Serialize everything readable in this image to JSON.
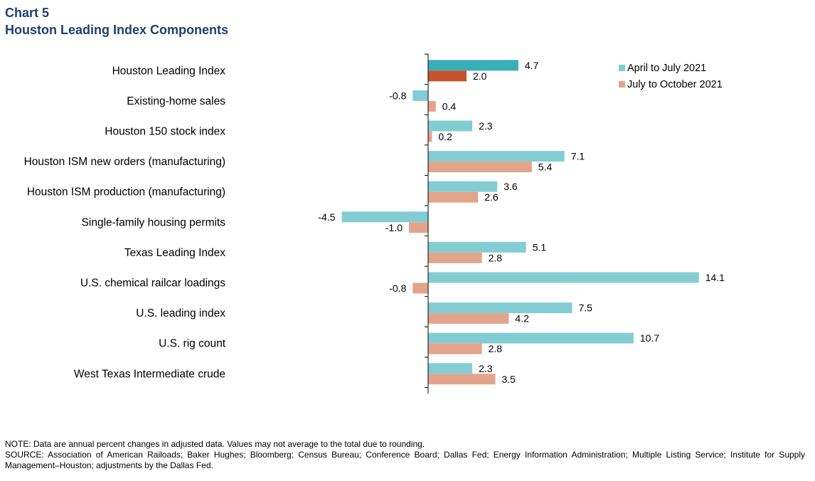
{
  "header": {
    "chart_label": "Chart 5",
    "title": "Houston Leading Index Components"
  },
  "colors": {
    "series1": "#84ccd3",
    "series2": "#e3a48c",
    "highlight1": "#38aeb6",
    "highlight2": "#c6532b",
    "axis": "#000000"
  },
  "chart_data": {
    "type": "bar",
    "orientation": "horizontal",
    "title": "Houston Leading Index Components",
    "categories": [
      "Houston Leading Index",
      "Existing-home sales",
      "Houston 150 stock index",
      "Houston ISM new orders (manufacturing)",
      "Houston ISM production (manufacturing)",
      "Single-family housing permits",
      "Texas Leading Index",
      "U.S. chemical railcar loadings",
      "U.S. leading index",
      "U.S. rig count",
      "West Texas Intermediate crude"
    ],
    "series": [
      {
        "name": "April to July 2021",
        "values": [
          4.7,
          -0.8,
          2.3,
          7.1,
          3.6,
          -4.5,
          5.1,
          14.1,
          7.5,
          10.7,
          2.3
        ]
      },
      {
        "name": "July to October 2021",
        "values": [
          2.0,
          0.4,
          0.2,
          5.4,
          2.6,
          -1.0,
          2.8,
          -0.8,
          4.2,
          2.8,
          3.5
        ]
      }
    ],
    "value_labels": [
      [
        "4.7",
        "-0.8",
        "2.3",
        "7.1",
        "3.6",
        "-4.5",
        "5.1",
        "14.1",
        "7.5",
        "10.7",
        "2.3"
      ],
      [
        "2.0",
        "0.4",
        "0.2",
        "5.4",
        "2.6",
        "-1.0",
        "2.8",
        "-0.8",
        "4.2",
        "2.8",
        "3.5"
      ]
    ],
    "highlight_category_index": 0,
    "xlim": [
      -5,
      14.5
    ],
    "legend_position": "top-right",
    "xlabel": "",
    "ylabel": ""
  },
  "notes": {
    "note": "NOTE: Data are annual percent changes in adjusted data. Values may not average  to the total due to rounding.",
    "source": "SOURCE: Association of American Railoads; Baker Hughes; Bloomberg; Census Bureau; Conference Board; Dallas Fed; Energy Information  Administration; Multiple Listing Service; Institute for Supply Management–Houston;  adjustments by the Dallas Fed."
  }
}
